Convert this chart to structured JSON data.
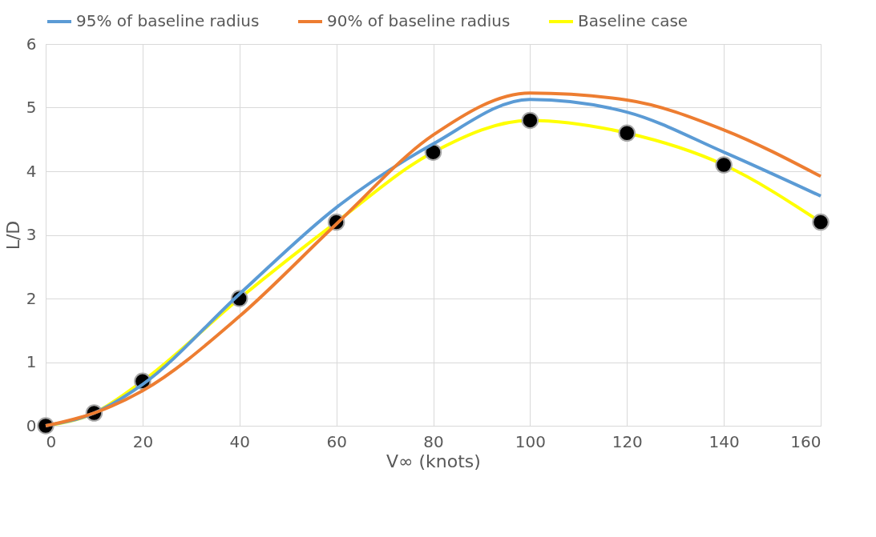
{
  "chart_data": {
    "type": "line",
    "xlabel": "V∞ (knots)",
    "ylabel": "L/D",
    "x": [
      0,
      10,
      20,
      40,
      60,
      80,
      100,
      120,
      140,
      160
    ],
    "series": [
      {
        "name": "95% of baseline radius",
        "color": "#5b9bd5",
        "marker": "none",
        "values": [
          0,
          0.2,
          0.65,
          2.07,
          3.43,
          4.43,
          5.13,
          4.93,
          4.3,
          3.61
        ]
      },
      {
        "name": "90% of baseline radius",
        "color": "#ed7d31",
        "marker": "none",
        "values": [
          0,
          0.2,
          0.55,
          1.72,
          3.17,
          4.57,
          5.23,
          5.12,
          4.65,
          3.92
        ]
      },
      {
        "name": "Baseline case",
        "color": "#ffff00",
        "marker": "circle",
        "values": [
          0,
          0.2,
          0.7,
          2.0,
          3.2,
          4.3,
          4.8,
          4.6,
          4.1,
          3.2
        ]
      }
    ],
    "xlim": [
      0,
      160
    ],
    "xticks": [
      0,
      20,
      40,
      60,
      80,
      100,
      120,
      140,
      160
    ],
    "ylim": [
      0,
      6
    ],
    "yticks": [
      0,
      1,
      2,
      3,
      4,
      5,
      6
    ],
    "grid": true,
    "legend": "top",
    "line_style": "solid"
  }
}
